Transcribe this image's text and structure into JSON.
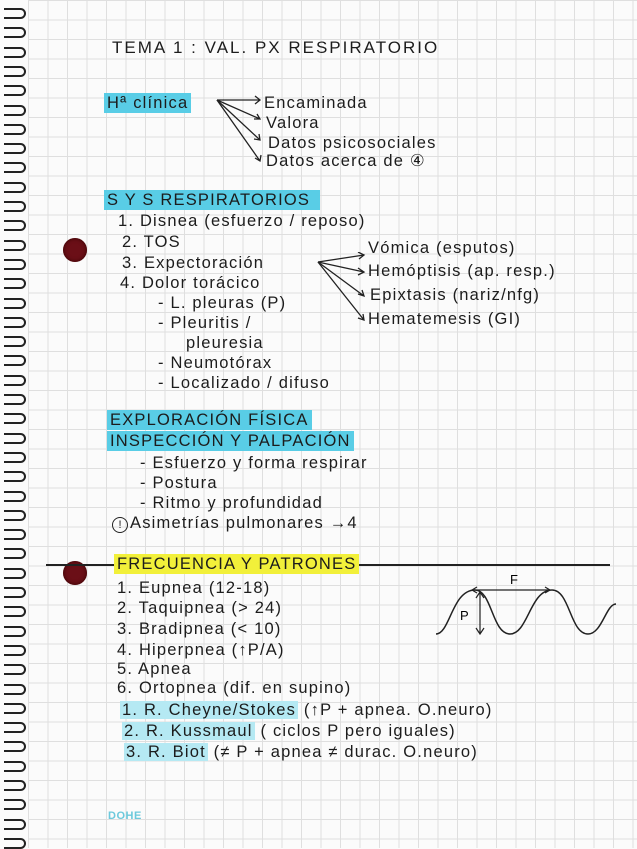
{
  "title": "TEMA 1 : VAL. PX RESPIRATORIO",
  "historia": {
    "heading": "Hª clínica",
    "items": [
      "Encaminada",
      "Valora",
      "Datos psicosociales",
      "Datos acerca de ④"
    ]
  },
  "sys": {
    "heading": "S Y S RESPIRATORIOS",
    "items": [
      "1. Disnea (esfuerzo / reposo)",
      "2. TOS",
      "3. Expectoración",
      "4. Dolor torácico"
    ],
    "dolor_sub": [
      "- L. pleuras (P)",
      "- Pleuritis /",
      "pleuresia",
      "- Neumotórax",
      "- Localizado / difuso"
    ],
    "expect_sub": [
      "Vómica (esputos)",
      "Hemóptisis (ap. resp.)",
      "Epixtasis (nariz/nfg)",
      "Hematemesis (GI)"
    ]
  },
  "exploracion": {
    "heading": "EXPLORACIÓN FÍSICA",
    "subheading": "INSPECCIÓN Y PALPACIÓN",
    "items": [
      "- Esfuerzo y forma respirar",
      "- Postura",
      "- Ritmo y profundidad"
    ],
    "note": "Asimetrías pulmonares →4"
  },
  "frecuencia": {
    "heading": "FRECUENCIA Y PATRONES",
    "items": [
      "1. Eupnea (12-18)",
      "2. Taquipnea (> 24)",
      "3. Bradipnea (< 10)",
      "4. Hiperpnea (↑P/A)",
      "5. Apnea",
      "6. Ortopnea (dif. en supino)"
    ],
    "ritmos": [
      {
        "name": "1. R. Cheyne/Stokes",
        "desc": " (↑P + apnea. O.neuro)"
      },
      {
        "name": "2. R. Kussmaul",
        "desc": " ( ciclos P pero iguales)"
      },
      {
        "name": "3. R. Biot",
        "desc": " (≠ P + apnea ≠ durac. O.neuro)"
      }
    ],
    "diagram": {
      "f_label": "F",
      "p_label": "P"
    }
  },
  "logo": "DOHE",
  "colors": {
    "highlight_blue": "#59cde6",
    "highlight_yellow": "#f2f03a",
    "hole": "#6b0f17"
  }
}
